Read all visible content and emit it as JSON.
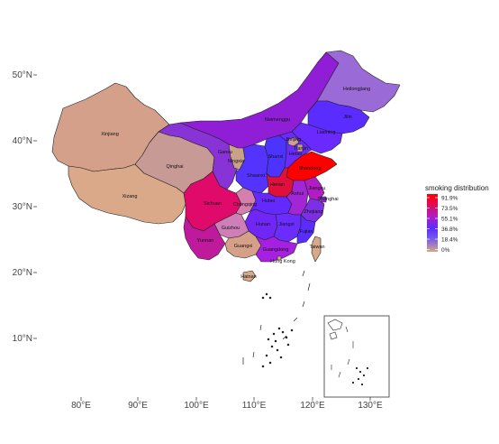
{
  "axes": {
    "lat_ticks": [
      {
        "value": 50,
        "label": "50°N"
      },
      {
        "value": 40,
        "label": "40°N"
      },
      {
        "value": 30,
        "label": "30°N"
      },
      {
        "value": 20,
        "label": "20°N"
      },
      {
        "value": 10,
        "label": "10°N"
      }
    ],
    "lon_ticks": [
      {
        "value": 80,
        "label": "80°E"
      },
      {
        "value": 90,
        "label": "90°E"
      },
      {
        "value": 100,
        "label": "100°E"
      },
      {
        "value": 110,
        "label": "110°E"
      },
      {
        "value": 120,
        "label": "120°E"
      },
      {
        "value": 130,
        "label": "130°E"
      }
    ]
  },
  "legend": {
    "title": "smoking distribution",
    "position": "right",
    "ticks": [
      "91.9%",
      "73.5%",
      "55.1%",
      "36.8%",
      "18.4%",
      "0%"
    ],
    "colors_top_to_bottom": [
      "#ff0000",
      "#e00a5e",
      "#a91fc8",
      "#5a2cff",
      "#7e63e0",
      "#d4a98a"
    ]
  },
  "provinces": [
    {
      "name": "Xinjiang",
      "label": "Xinjiang",
      "color": "#d4a08a"
    },
    {
      "name": "Xizang",
      "label": "Xizang",
      "color": "#d9a98a"
    },
    {
      "name": "Qinghai",
      "label": "Qinghai",
      "color": "#c79a95"
    },
    {
      "name": "Gansu",
      "label": "Gansu",
      "color": "#8833d6"
    },
    {
      "name": "Inner Mongolia",
      "label": "Neimenggu",
      "color": "#8f1ed6"
    },
    {
      "name": "Heilongjiang",
      "label": "Heilongjiang",
      "color": "#9a6ad6"
    },
    {
      "name": "Jilin",
      "label": "Jilin",
      "color": "#5a2cff"
    },
    {
      "name": "Liaoning",
      "label": "Liaoning",
      "color": "#6a2aff"
    },
    {
      "name": "Ningxia",
      "label": "Ningxia",
      "color": "#c9a189"
    },
    {
      "name": "Shaanxi",
      "label": "Shaanxi",
      "color": "#5533ff"
    },
    {
      "name": "Shanxi",
      "label": "Shanxi",
      "color": "#4d33ff"
    },
    {
      "name": "Beijing",
      "label": "Beijing",
      "color": "#cc9f98"
    },
    {
      "name": "Tianjin",
      "label": "Tianjin",
      "color": "#c79c98"
    },
    {
      "name": "Hebei",
      "label": "Hebei",
      "color": "#6b2bff"
    },
    {
      "name": "Shandong",
      "label": "Shandong",
      "color": "#ff0000"
    },
    {
      "name": "Henan",
      "label": "Henan",
      "color": "#e0103c"
    },
    {
      "name": "Sichuan",
      "label": "Sichuan",
      "color": "#e00a6a"
    },
    {
      "name": "Chongqing",
      "label": "Chongqing",
      "color": "#d57fae"
    },
    {
      "name": "Hubei",
      "label": "Hubei",
      "color": "#6429ff"
    },
    {
      "name": "Anhui",
      "label": "Anhui",
      "color": "#a126d6"
    },
    {
      "name": "Jiangsu",
      "label": "Jiangsu",
      "color": "#b21cc4"
    },
    {
      "name": "Shanghai",
      "label": "Shanghai",
      "color": "#8a2fd6"
    },
    {
      "name": "Zhejiang",
      "label": "Zhejiang",
      "color": "#7c2fe5"
    },
    {
      "name": "Hunan",
      "label": "Hunan",
      "color": "#7026f5"
    },
    {
      "name": "Jiangxi",
      "label": "Jiangxi",
      "color": "#6a2cff"
    },
    {
      "name": "Fujian",
      "label": "Fujian",
      "color": "#5a2cff"
    },
    {
      "name": "Guizhou",
      "label": "Guizhou",
      "color": "#ce7fb8"
    },
    {
      "name": "Yunnan",
      "label": "Yunnan",
      "color": "#c01a9c"
    },
    {
      "name": "Guangxi",
      "label": "Guangxi",
      "color": "#d6a088"
    },
    {
      "name": "Guangdong",
      "label": "Guangdong",
      "color": "#a71fe0"
    },
    {
      "name": "Hainan",
      "label": "Hainan",
      "color": "#d7a98a"
    },
    {
      "name": "Taiwan",
      "label": "Taiwan",
      "color": "#d6a98a"
    },
    {
      "name": "Hong Kong",
      "label": "Hong Kong",
      "color": "#d6a98a"
    }
  ]
}
